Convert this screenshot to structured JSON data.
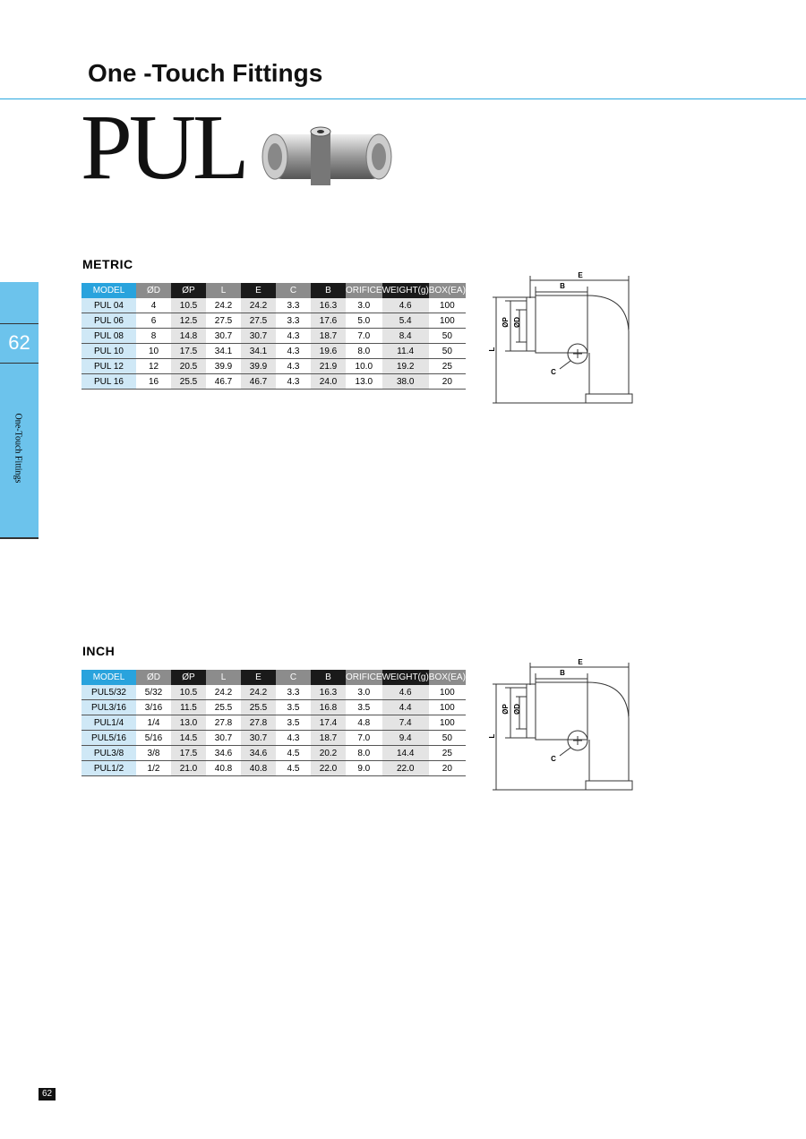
{
  "header": {
    "title": "One -Touch Fittings",
    "product": "PUL"
  },
  "side_tab": {
    "page": "62",
    "label": "One-Touch Fittings"
  },
  "tables": [
    {
      "title": "METRIC",
      "columns": [
        "MODEL",
        "ØD",
        "ØP",
        "L",
        "E",
        "C",
        "B",
        "ORIFICE",
        "WEIGHT(g)",
        "BOX(EA)"
      ],
      "rows": [
        [
          "PUL 04",
          "4",
          "10.5",
          "24.2",
          "24.2",
          "3.3",
          "16.3",
          "3.0",
          "4.6",
          "100"
        ],
        [
          "PUL 06",
          "6",
          "12.5",
          "27.5",
          "27.5",
          "3.3",
          "17.6",
          "5.0",
          "5.4",
          "100"
        ],
        [
          "PUL 08",
          "8",
          "14.8",
          "30.7",
          "30.7",
          "4.3",
          "18.7",
          "7.0",
          "8.4",
          "50"
        ],
        [
          "PUL 10",
          "10",
          "17.5",
          "34.1",
          "34.1",
          "4.3",
          "19.6",
          "8.0",
          "11.4",
          "50"
        ],
        [
          "PUL 12",
          "12",
          "20.5",
          "39.9",
          "39.9",
          "4.3",
          "21.9",
          "10.0",
          "19.2",
          "25"
        ],
        [
          "PUL 16",
          "16",
          "25.5",
          "46.7",
          "46.7",
          "4.3",
          "24.0",
          "13.0",
          "38.0",
          "20"
        ]
      ],
      "diagram": [
        "E",
        "B",
        "ØP",
        "ØD",
        "L",
        "C"
      ]
    },
    {
      "title": "INCH",
      "columns": [
        "MODEL",
        "ØD",
        "ØP",
        "L",
        "E",
        "C",
        "B",
        "ORIFICE",
        "WEIGHT(g)",
        "BOX(EA)"
      ],
      "rows": [
        [
          "PUL5/32",
          "5/32",
          "10.5",
          "24.2",
          "24.2",
          "3.3",
          "16.3",
          "3.0",
          "4.6",
          "100"
        ],
        [
          "PUL3/16",
          "3/16",
          "11.5",
          "25.5",
          "25.5",
          "3.5",
          "16.8",
          "3.5",
          "4.4",
          "100"
        ],
        [
          "PUL1/4",
          "1/4",
          "13.0",
          "27.8",
          "27.8",
          "3.5",
          "17.4",
          "4.8",
          "7.4",
          "100"
        ],
        [
          "PUL5/16",
          "5/16",
          "14.5",
          "30.7",
          "30.7",
          "4.3",
          "18.7",
          "7.0",
          "9.4",
          "50"
        ],
        [
          "PUL3/8",
          "3/8",
          "17.5",
          "34.6",
          "34.6",
          "4.5",
          "20.2",
          "8.0",
          "14.4",
          "25"
        ],
        [
          "PUL1/2",
          "1/2",
          "21.0",
          "40.8",
          "40.8",
          "4.5",
          "22.0",
          "9.0",
          "22.0",
          "20"
        ]
      ],
      "diagram": [
        "E",
        "B",
        "ØP",
        "ØD",
        "L",
        "C"
      ]
    }
  ],
  "footer": {
    "page": "62"
  }
}
